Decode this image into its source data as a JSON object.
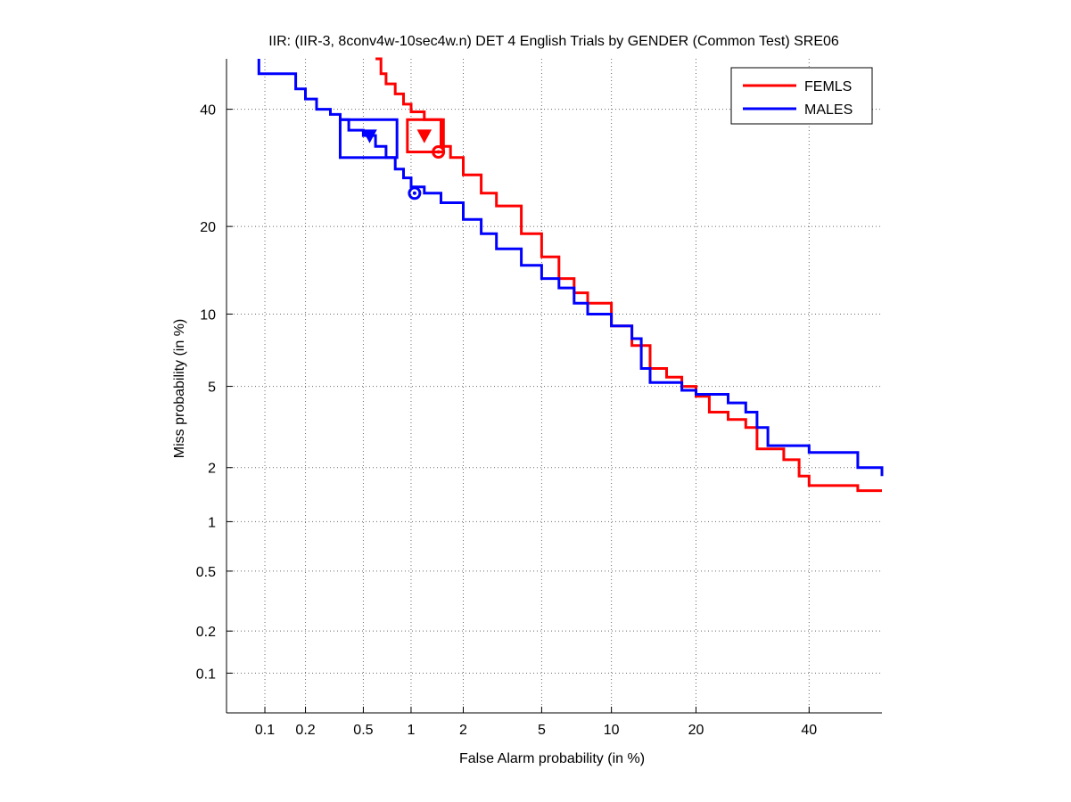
{
  "chart_data": {
    "type": "line",
    "title": "IIR: (IIR-3, 8conv4w-10sec4w.n) DET 4 English Trials by GENDER (Common Test) SRE06",
    "xlabel": "False Alarm probability (in %)",
    "ylabel": "Miss probability (in %)",
    "x_scale": "probit",
    "y_scale": "probit",
    "xlim": [
      0.05,
      55
    ],
    "ylim": [
      0.05,
      50
    ],
    "x_ticks": [
      0.1,
      0.2,
      0.5,
      1,
      2,
      5,
      10,
      20,
      40
    ],
    "x_tick_labels": [
      "0.1",
      "0.2",
      "0.5",
      "1",
      "2",
      "5",
      "10",
      "20",
      "40"
    ],
    "y_ticks": [
      0.1,
      0.2,
      0.5,
      1,
      2,
      5,
      10,
      20,
      40
    ],
    "y_tick_labels": [
      "0.1",
      "0.2",
      "0.5",
      "1",
      "2",
      "5",
      "10",
      "20",
      "40"
    ],
    "grid": true,
    "legend_position": "top-right",
    "series": [
      {
        "name": "FEMLS",
        "color": "#ff0000",
        "points": [
          [
            0.6,
            50
          ],
          [
            0.65,
            47
          ],
          [
            0.7,
            45
          ],
          [
            0.8,
            43
          ],
          [
            0.9,
            41
          ],
          [
            1.0,
            39.5
          ],
          [
            1.2,
            38
          ],
          [
            1.5,
            33
          ],
          [
            1.7,
            31
          ],
          [
            2.0,
            28
          ],
          [
            2.5,
            25
          ],
          [
            3.0,
            23
          ],
          [
            4.0,
            19
          ],
          [
            5.0,
            16
          ],
          [
            6.0,
            13.5
          ],
          [
            7.0,
            12
          ],
          [
            8.0,
            11
          ],
          [
            10.0,
            9
          ],
          [
            12.0,
            7.5
          ],
          [
            14.0,
            6
          ],
          [
            16.0,
            5.5
          ],
          [
            18.0,
            5
          ],
          [
            20.0,
            4.5
          ],
          [
            22.0,
            3.8
          ],
          [
            25.0,
            3.5
          ],
          [
            28.0,
            3.2
          ],
          [
            30.0,
            2.5
          ],
          [
            35.0,
            2.2
          ],
          [
            38.0,
            1.8
          ],
          [
            40.0,
            1.6
          ],
          [
            48.0,
            1.6
          ],
          [
            50.0,
            1.5
          ],
          [
            55.0,
            1.5
          ]
        ],
        "markers": {
          "act_dcf": [
            1.2,
            35
          ],
          "min_dcf": [
            1.45,
            32
          ],
          "box": {
            "x": [
              0.95,
              1.55
            ],
            "y": [
              32,
              38
            ]
          }
        }
      },
      {
        "name": "MALES",
        "color": "#0000ff",
        "points": [
          [
            0.09,
            50
          ],
          [
            0.09,
            47
          ],
          [
            0.16,
            47
          ],
          [
            0.17,
            44
          ],
          [
            0.2,
            42
          ],
          [
            0.24,
            40
          ],
          [
            0.3,
            39
          ],
          [
            0.35,
            38
          ],
          [
            0.4,
            36
          ],
          [
            0.5,
            35
          ],
          [
            0.6,
            33
          ],
          [
            0.7,
            31
          ],
          [
            0.8,
            29
          ],
          [
            0.9,
            27.5
          ],
          [
            1.0,
            26
          ],
          [
            1.2,
            25
          ],
          [
            1.5,
            23.5
          ],
          [
            2.0,
            21
          ],
          [
            2.5,
            19
          ],
          [
            3.0,
            17
          ],
          [
            4.0,
            15
          ],
          [
            5.0,
            13.5
          ],
          [
            6.0,
            12.5
          ],
          [
            7.0,
            11
          ],
          [
            8.0,
            10
          ],
          [
            10.0,
            9
          ],
          [
            12.0,
            8
          ],
          [
            13.0,
            6
          ],
          [
            14.0,
            5.2
          ],
          [
            16.0,
            5.2
          ],
          [
            18.0,
            4.8
          ],
          [
            20.0,
            4.6
          ],
          [
            25.0,
            4.2
          ],
          [
            28.0,
            3.8
          ],
          [
            30.0,
            3.2
          ],
          [
            32.0,
            2.6
          ],
          [
            40.0,
            2.4
          ],
          [
            50.0,
            2.0
          ],
          [
            55.0,
            1.8
          ]
        ],
        "markers": {
          "act_dcf": [
            0.55,
            35
          ],
          "min_dcf": [
            1.05,
            25
          ],
          "box": {
            "x": [
              0.35,
              0.82
            ],
            "y": [
              31,
              38
            ]
          }
        }
      }
    ]
  }
}
